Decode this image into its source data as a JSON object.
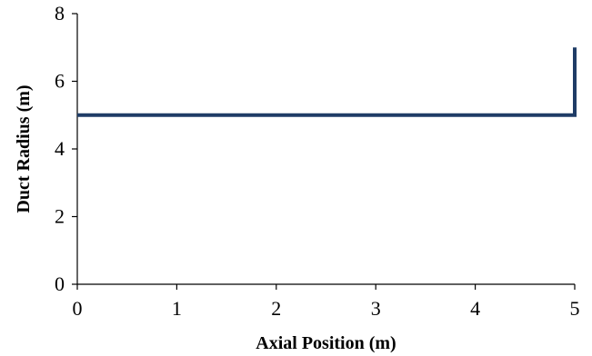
{
  "chart_data": {
    "type": "line",
    "title": "",
    "xlabel": "Axial Position (m)",
    "ylabel": "Duct Radius (m)",
    "xlim": [
      0,
      5
    ],
    "ylim": [
      0,
      8
    ],
    "xticks": [
      0,
      1,
      2,
      3,
      4,
      5
    ],
    "yticks": [
      0,
      2,
      4,
      6,
      8
    ],
    "grid": false,
    "legend": "none",
    "series": [
      {
        "color": "#1f3c66",
        "x": [
          0,
          5,
          5
        ],
        "y": [
          5,
          5,
          7
        ]
      }
    ]
  }
}
